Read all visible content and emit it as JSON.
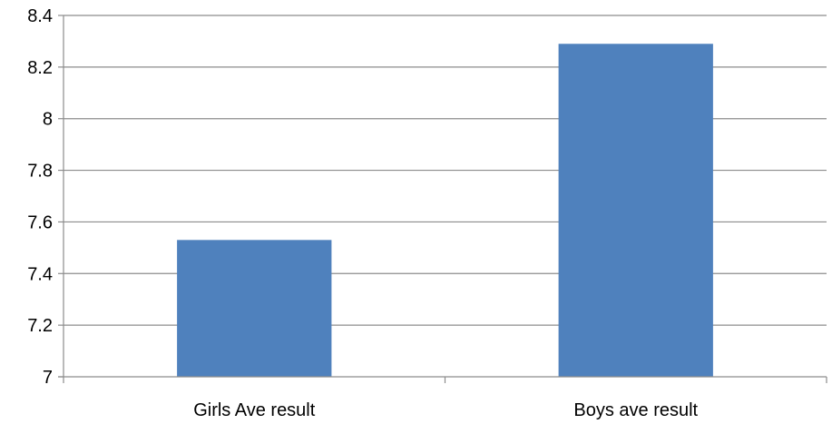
{
  "chart_data": {
    "type": "bar",
    "title": "",
    "xlabel": "",
    "ylabel": "",
    "categories": [
      "Girls Ave result",
      "Boys ave result"
    ],
    "values": [
      7.53,
      8.29
    ],
    "ylim": [
      7,
      8.4
    ],
    "yticks": [
      "7",
      "7.2",
      "7.4",
      "7.6",
      "7.8",
      "8",
      "8.2",
      "8.4"
    ],
    "grid": true,
    "legend": "none",
    "bar_color": "#4f81bd",
    "grid_color": "#8c8c8c"
  }
}
